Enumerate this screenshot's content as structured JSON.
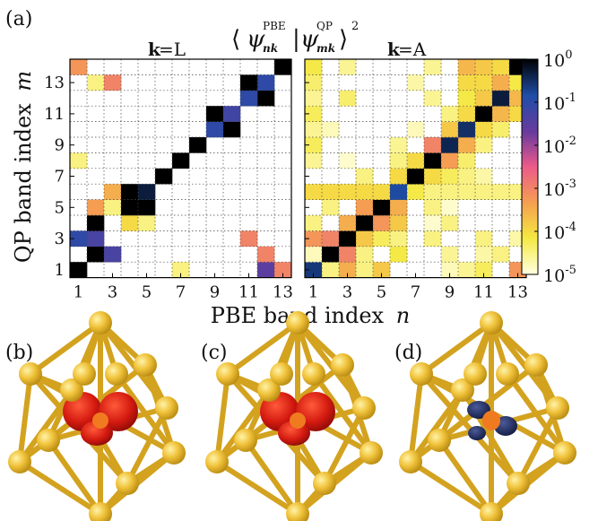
{
  "panel_labels": {
    "a": "(a)",
    "b": "(b)",
    "c": "(c)",
    "d": "(d)"
  },
  "chart_data": {
    "type": "heatmap",
    "title_parts": {
      "open": "⟨",
      "psi": "ψ",
      "pbe_sup": "PBE",
      "pbe_sub": "nk",
      "bar": "|",
      "qp_sup": "QP",
      "qp_sub": "mk",
      "close": "⟩",
      "power": "2"
    },
    "xlabel": {
      "text": "PBE band index",
      "var": "n"
    },
    "ylabel": {
      "text": "QP band index",
      "var": "m"
    },
    "x_ticks": [
      "1",
      "3",
      "5",
      "7",
      "9",
      "11",
      "13"
    ],
    "y_ticks": [
      "1",
      "3",
      "5",
      "7",
      "9",
      "11",
      "13"
    ],
    "colorbar": {
      "scale": "log",
      "range": [
        1e-05,
        1
      ],
      "ticks": [
        {
          "value": 1,
          "base": "10",
          "exp": "0"
        },
        {
          "value": 0.1,
          "base": "10",
          "exp": "-1"
        },
        {
          "value": 0.01,
          "base": "10",
          "exp": "-2"
        },
        {
          "value": 0.001,
          "base": "10",
          "exp": "-3"
        },
        {
          "value": 0.0001,
          "base": "10",
          "exp": "-4"
        },
        {
          "value": 1e-05,
          "base": "10",
          "exp": "-5"
        }
      ],
      "colors": [
        "#ffffe0",
        "#f5e842",
        "#f5a050",
        "#ec5a8a",
        "#6a3a9e",
        "#1f4ea8",
        "#000000"
      ]
    },
    "panels": [
      {
        "k_label": "k",
        "k_value": "=L",
        "cells": [
          [
            1,
            1,
            0
          ],
          [
            12,
            1,
            -1.5
          ],
          [
            7,
            1,
            -4.5
          ],
          [
            13,
            1,
            -3
          ],
          [
            2,
            2,
            0
          ],
          [
            3,
            2,
            -1.3
          ],
          [
            12,
            2,
            -3
          ],
          [
            1,
            3,
            -1
          ],
          [
            2,
            3,
            -1.3
          ],
          [
            11,
            3,
            -3
          ],
          [
            2,
            4,
            0
          ],
          [
            4,
            4,
            -4
          ],
          [
            5,
            4,
            -4.5
          ],
          [
            2,
            5,
            -3.3
          ],
          [
            3,
            5,
            -4.5
          ],
          [
            4,
            5,
            0
          ],
          [
            5,
            5,
            0
          ],
          [
            3,
            6,
            -3.5
          ],
          [
            4,
            6,
            0
          ],
          [
            5,
            6,
            -0.3
          ],
          [
            6,
            7,
            0
          ],
          [
            7,
            8,
            0
          ],
          [
            8,
            9,
            0
          ],
          [
            9,
            10,
            -1
          ],
          [
            10,
            10,
            0
          ],
          [
            9,
            11,
            0
          ],
          [
            10,
            11,
            -1.2
          ],
          [
            12,
            12,
            0
          ],
          [
            11,
            12,
            -1
          ],
          [
            2,
            13,
            -4.5
          ],
          [
            3,
            13,
            -3
          ],
          [
            12,
            13,
            -1
          ],
          [
            11,
            13,
            0
          ],
          [
            1,
            14,
            -3.2
          ],
          [
            13,
            14,
            0
          ],
          [
            1,
            8,
            -4.5
          ]
        ]
      },
      {
        "k_label": "k",
        "k_value": "=A",
        "cells": [
          [
            1,
            1,
            -0.6
          ],
          [
            2,
            1,
            -4.5
          ],
          [
            3,
            1,
            -3.5
          ],
          [
            4,
            1,
            -4.5
          ],
          [
            5,
            1,
            -3.8
          ],
          [
            9,
            1,
            -4.8
          ],
          [
            10,
            1,
            -4.6
          ],
          [
            11,
            1,
            -4.3
          ],
          [
            13,
            1,
            -3.2
          ],
          [
            1,
            2,
            -4.8
          ],
          [
            2,
            2,
            0
          ],
          [
            3,
            2,
            -3
          ],
          [
            4,
            2,
            -4.5
          ],
          [
            6,
            2,
            -4.2
          ],
          [
            9,
            2,
            -4.6
          ],
          [
            11,
            2,
            -4.7
          ],
          [
            12,
            2,
            -4.5
          ],
          [
            1,
            3,
            -3.2
          ],
          [
            2,
            3,
            -3
          ],
          [
            3,
            3,
            0
          ],
          [
            4,
            3,
            -3.8
          ],
          [
            5,
            3,
            -4.3
          ],
          [
            6,
            3,
            -4.5
          ],
          [
            8,
            3,
            -4.5
          ],
          [
            11,
            3,
            -4.5
          ],
          [
            13,
            3,
            -4.7
          ],
          [
            1,
            4,
            -4.5
          ],
          [
            3,
            4,
            -3.5
          ],
          [
            4,
            4,
            0
          ],
          [
            5,
            4,
            -3.2
          ],
          [
            6,
            4,
            -3.8
          ],
          [
            8,
            4,
            -4.9
          ],
          [
            9,
            4,
            -4.5
          ],
          [
            2,
            5,
            -4.5
          ],
          [
            4,
            5,
            -3.3
          ],
          [
            5,
            5,
            0
          ],
          [
            6,
            5,
            -3.5
          ],
          [
            8,
            5,
            -4.5
          ],
          [
            9,
            5,
            -4.9
          ],
          [
            1,
            6,
            -4
          ],
          [
            2,
            6,
            -4
          ],
          [
            3,
            6,
            -4
          ],
          [
            4,
            6,
            -4
          ],
          [
            5,
            6,
            -4
          ],
          [
            6,
            6,
            -0.8
          ],
          [
            7,
            6,
            -4.2
          ],
          [
            8,
            6,
            -4.5
          ],
          [
            9,
            6,
            -4.5
          ],
          [
            10,
            6,
            -4.5
          ],
          [
            11,
            6,
            -4.5
          ],
          [
            12,
            6,
            -4.5
          ],
          [
            13,
            6,
            -4.5
          ],
          [
            4,
            7,
            -4.5
          ],
          [
            6,
            7,
            -4
          ],
          [
            7,
            7,
            0
          ],
          [
            8,
            7,
            -4
          ],
          [
            9,
            7,
            -4.3
          ],
          [
            10,
            7,
            -4.5
          ],
          [
            11,
            7,
            -4.7
          ],
          [
            1,
            8,
            -4.6
          ],
          [
            3,
            8,
            -4.9
          ],
          [
            6,
            8,
            -4.5
          ],
          [
            7,
            8,
            -4
          ],
          [
            8,
            8,
            0
          ],
          [
            9,
            8,
            -3.3
          ],
          [
            10,
            8,
            -4.4
          ],
          [
            1,
            9,
            -4.3
          ],
          [
            6,
            9,
            -4.6
          ],
          [
            8,
            9,
            -3
          ],
          [
            9,
            9,
            -0.4
          ],
          [
            10,
            9,
            -3.5
          ],
          [
            11,
            9,
            -4.5
          ],
          [
            1,
            10,
            -4.6
          ],
          [
            2,
            10,
            -4.8
          ],
          [
            7,
            10,
            -4.8
          ],
          [
            9,
            10,
            -3.8
          ],
          [
            10,
            10,
            -0.5
          ],
          [
            11,
            10,
            -4
          ],
          [
            12,
            10,
            -4.4
          ],
          [
            1,
            11,
            -4.3
          ],
          [
            9,
            11,
            -4.5
          ],
          [
            10,
            11,
            -4
          ],
          [
            11,
            11,
            0
          ],
          [
            12,
            11,
            -3.6
          ],
          [
            13,
            11,
            -4
          ],
          [
            1,
            12,
            -4.6
          ],
          [
            3,
            12,
            -4.4
          ],
          [
            8,
            12,
            -4.6
          ],
          [
            10,
            12,
            -4.2
          ],
          [
            11,
            12,
            -3.8
          ],
          [
            12,
            12,
            -0.3
          ],
          [
            13,
            12,
            -3.6
          ],
          [
            1,
            13,
            -4.4
          ],
          [
            7,
            13,
            -4.7
          ],
          [
            10,
            13,
            -4
          ],
          [
            11,
            13,
            -4
          ],
          [
            12,
            13,
            -3.5
          ],
          [
            13,
            13,
            -4.2
          ],
          [
            1,
            14,
            -4.2
          ],
          [
            3,
            14,
            -4.6
          ],
          [
            8,
            14,
            -4.6
          ],
          [
            10,
            14,
            -3.6
          ],
          [
            11,
            14,
            -3.8
          ],
          [
            12,
            14,
            -4
          ],
          [
            13,
            14,
            0
          ]
        ]
      }
    ]
  }
}
